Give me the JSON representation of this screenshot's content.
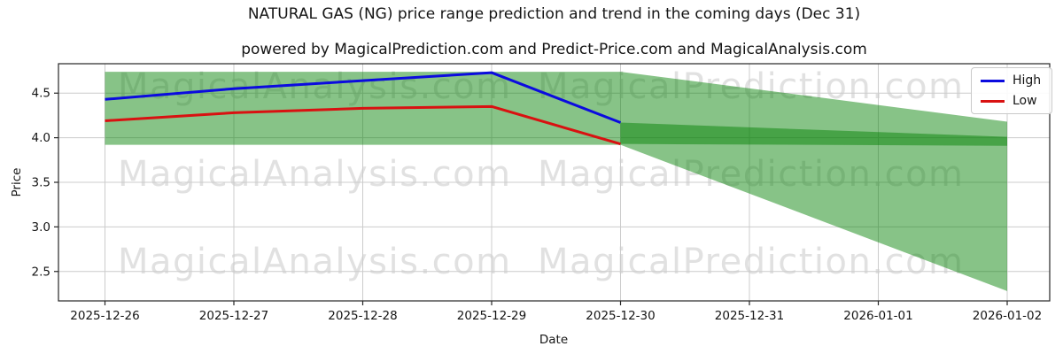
{
  "title": "NATURAL GAS (NG) price range prediction and trend in the coming days (Dec 31)",
  "subtitle": "powered by MagicalPrediction.com and Predict-Price.com and MagicalAnalysis.com",
  "watermarks": {
    "left": "MagicalAnalysis.com",
    "right": "MagicalPrediction.com"
  },
  "axes": {
    "x_label": "Date",
    "y_label": "Price"
  },
  "legend": {
    "position": "upper right",
    "items": [
      {
        "label": "High",
        "color": "#0b0bdf"
      },
      {
        "label": "Low",
        "color": "#d91111"
      }
    ]
  },
  "colors": {
    "band_green": "rgba(0,128,0,0.47)",
    "grid": "#cccccc",
    "spine": "#262626",
    "tick_text": "#151515"
  },
  "chart_data": {
    "type": "line",
    "title": "NATURAL GAS (NG) price range prediction and trend in the coming days (Dec 31)",
    "xlabel": "Date",
    "ylabel": "Price",
    "x": [
      "2025-12-26",
      "2025-12-27",
      "2025-12-28",
      "2025-12-29",
      "2025-12-30",
      "2025-12-31",
      "2026-01-01",
      "2026-01-02"
    ],
    "y_ticks": [
      "2.5",
      "3.0",
      "3.5",
      "4.0",
      "4.5"
    ],
    "ylim": [
      2.17,
      4.83
    ],
    "grid": true,
    "series": [
      {
        "name": "High",
        "color": "#0b0bdf",
        "x_idx": [
          0,
          1,
          2,
          3,
          4
        ],
        "values": [
          4.43,
          4.55,
          4.64,
          4.73,
          4.17
        ]
      },
      {
        "name": "Low",
        "color": "#d91111",
        "x_idx": [
          0,
          1,
          2,
          3,
          4
        ],
        "values": [
          4.19,
          4.28,
          4.33,
          4.35,
          3.93
        ]
      }
    ],
    "bands": [
      {
        "name": "observed-range",
        "x_idx": [
          0,
          4
        ],
        "top": [
          4.74,
          4.74
        ],
        "bottom": [
          3.92,
          3.92
        ]
      },
      {
        "name": "forecast-fan",
        "x_idx": [
          4,
          7
        ],
        "top": [
          4.74,
          4.18
        ],
        "bottom": [
          3.92,
          2.28
        ]
      },
      {
        "name": "forecast-core",
        "x_idx": [
          4,
          7
        ],
        "top": [
          4.17,
          4.01
        ],
        "bottom": [
          3.93,
          3.91
        ]
      }
    ]
  }
}
